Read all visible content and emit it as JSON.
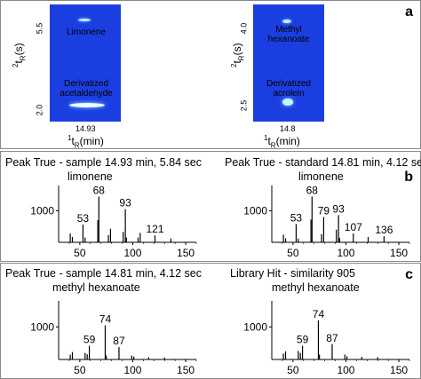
{
  "panel_a": {
    "letter": "a",
    "left": {
      "y_ticks": [
        "5.5",
        "2.0"
      ],
      "x_tick": "14.93",
      "label_top": "Limonene",
      "label_bottom_1": "Derivatized",
      "label_bottom_2": "acetaldehyde"
    },
    "right": {
      "y_ticks": [
        "4.0",
        "2.5"
      ],
      "x_tick": "14.8",
      "label_top_1": "Methyl",
      "label_top_2": "hexanoate",
      "label_bottom_1": "Derivatized",
      "label_bottom_2": "acrolein"
    },
    "y_axis_label": "²t_R(s)",
    "x_axis_label": "¹t_R(min)",
    "colors": {
      "background": "#1a3fe0",
      "spot": "#d9f7ff"
    }
  },
  "panel_b": {
    "letter": "b",
    "left_title": "Peak True - sample 14.93 min, 5.84 sec",
    "left_sub": "limonene",
    "right_title": "Peak True - standard 14.81 min, 4.12 sec",
    "right_sub": "limonene"
  },
  "panel_c": {
    "letter": "c",
    "left_title": "Peak True - sample 14.81 min, 4.12 sec",
    "left_sub": "methyl hexanoate",
    "right_title": "Library Hit - similarity 905",
    "right_sub": "methyl hexanoate"
  },
  "chart_data": [
    {
      "type": "bar",
      "name_ref": "b-left",
      "ytick": "1000",
      "xticks": [
        50,
        100,
        150
      ],
      "xlim": [
        30,
        160
      ],
      "ylim": [
        0,
        1800
      ],
      "peaks": [
        [
          41,
          280
        ],
        [
          43,
          170
        ],
        [
          53,
          560
        ],
        [
          55,
          150
        ],
        [
          67,
          700
        ],
        [
          68,
          1450
        ],
        [
          77,
          230
        ],
        [
          79,
          430
        ],
        [
          91,
          330
        ],
        [
          93,
          1050
        ],
        [
          94,
          150
        ],
        [
          105,
          150
        ],
        [
          107,
          300
        ],
        [
          121,
          220
        ],
        [
          136,
          120
        ]
      ],
      "labels": [
        [
          53,
          "53"
        ],
        [
          68,
          "68"
        ],
        [
          93,
          "93"
        ],
        [
          121,
          "121"
        ]
      ]
    },
    {
      "type": "bar",
      "name_ref": "b-right",
      "ytick": "1000",
      "xticks": [
        50,
        100,
        150
      ],
      "xlim": [
        30,
        160
      ],
      "ylim": [
        0,
        1800
      ],
      "peaks": [
        [
          41,
          240
        ],
        [
          43,
          130
        ],
        [
          53,
          580
        ],
        [
          55,
          120
        ],
        [
          67,
          720
        ],
        [
          68,
          1450
        ],
        [
          77,
          260
        ],
        [
          79,
          800
        ],
        [
          91,
          400
        ],
        [
          93,
          860
        ],
        [
          94,
          140
        ],
        [
          107,
          280
        ],
        [
          121,
          170
        ],
        [
          136,
          190
        ]
      ],
      "labels": [
        [
          53,
          "53"
        ],
        [
          68,
          "68"
        ],
        [
          79,
          "79"
        ],
        [
          93,
          "93"
        ],
        [
          107,
          "107"
        ],
        [
          136,
          "136"
        ]
      ]
    },
    {
      "type": "bar",
      "name_ref": "c-left",
      "ytick": "1000",
      "xticks": [
        50,
        100,
        150
      ],
      "xlim": [
        30,
        160
      ],
      "ylim": [
        0,
        1800
      ],
      "peaks": [
        [
          41,
          150
        ],
        [
          43,
          230
        ],
        [
          55,
          200
        ],
        [
          57,
          160
        ],
        [
          59,
          420
        ],
        [
          74,
          1050
        ],
        [
          75,
          120
        ],
        [
          87,
          380
        ],
        [
          99,
          120
        ],
        [
          101,
          90
        ],
        [
          115,
          70
        ],
        [
          130,
          60
        ]
      ],
      "labels": [
        [
          59,
          "59"
        ],
        [
          74,
          "74"
        ],
        [
          87,
          "87"
        ]
      ]
    },
    {
      "type": "bar",
      "name_ref": "c-right",
      "ytick": "1000",
      "xticks": [
        50,
        100,
        150
      ],
      "xlim": [
        30,
        160
      ],
      "ylim": [
        0,
        1800
      ],
      "peaks": [
        [
          41,
          180
        ],
        [
          43,
          250
        ],
        [
          55,
          260
        ],
        [
          57,
          200
        ],
        [
          59,
          420
        ],
        [
          74,
          1200
        ],
        [
          75,
          150
        ],
        [
          87,
          470
        ],
        [
          99,
          150
        ],
        [
          101,
          100
        ],
        [
          115,
          80
        ],
        [
          130,
          70
        ]
      ],
      "labels": [
        [
          59,
          "59"
        ],
        [
          74,
          "74"
        ],
        [
          87,
          "87"
        ]
      ]
    }
  ]
}
